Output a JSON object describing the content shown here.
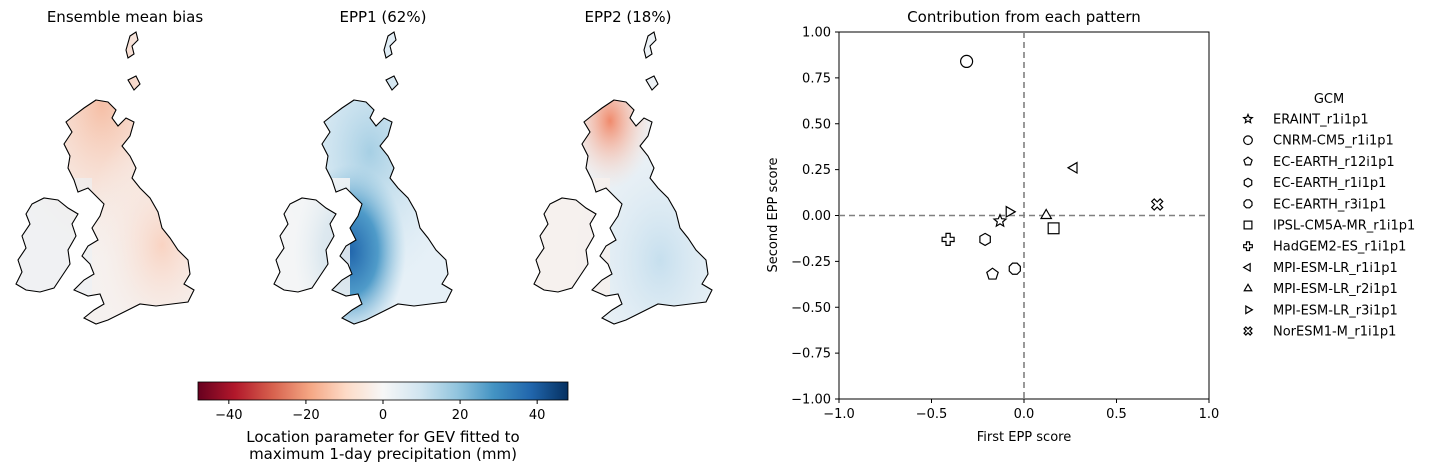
{
  "maps": [
    {
      "title": "Ensemble mean bias",
      "scheme": "bias"
    },
    {
      "title": "EPP1 (62%)",
      "scheme": "epp1"
    },
    {
      "title": "EPP2 (18%)",
      "scheme": "epp2"
    }
  ],
  "colorbar": {
    "colormap": "RdBu",
    "range": [
      -48,
      48
    ],
    "ticks": [
      -40,
      -20,
      0,
      20,
      40
    ],
    "tick_labels": [
      "−40",
      "−20",
      "0",
      "20",
      "40"
    ],
    "label_line1": "Location parameter for GEV fitted to",
    "label_line2": "maximum 1-day precipitation (mm)"
  },
  "chart_data": {
    "type": "scatter",
    "title": "Contribution from each pattern",
    "xlabel": "First EPP score",
    "ylabel": "Second EPP score",
    "xlim": [
      -1.0,
      1.0
    ],
    "ylim": [
      -1.0,
      1.0
    ],
    "xticks": [
      -1.0,
      -0.5,
      0.0,
      0.5,
      1.0
    ],
    "xtick_labels": [
      "−1.0",
      "−0.5",
      "0.0",
      "0.5",
      "1.0"
    ],
    "yticks": [
      1.0,
      0.75,
      0.5,
      0.25,
      0.0,
      -0.25,
      -0.5,
      -0.75,
      -1.0
    ],
    "ytick_labels": [
      "1.00",
      "0.75",
      "0.50",
      "0.25",
      "0.00",
      "−0.25",
      "−0.50",
      "−0.75",
      "−1.00"
    ],
    "reference_lines": {
      "x": 0,
      "y": 0,
      "style": "dashed",
      "color": "#808080"
    },
    "legend_title": "GCM",
    "legend_position": "right, outside",
    "series": [
      {
        "name": "ERAINT_r1i1p1",
        "marker": "star",
        "x": -0.13,
        "y": -0.03
      },
      {
        "name": "CNRM-CM5_r1i1p1",
        "marker": "circle",
        "x": -0.31,
        "y": 0.84
      },
      {
        "name": "EC-EARTH_r12i1p1",
        "marker": "pentagon",
        "x": -0.17,
        "y": -0.32
      },
      {
        "name": "EC-EARTH_r1i1p1",
        "marker": "hexagon",
        "x": -0.21,
        "y": -0.13
      },
      {
        "name": "EC-EARTH_r3i1p1",
        "marker": "octagon",
        "x": -0.05,
        "y": -0.29
      },
      {
        "name": "IPSL-CM5A-MR_r1i1p1",
        "marker": "square",
        "x": 0.16,
        "y": -0.07
      },
      {
        "name": "HadGEM2-ES_r1i1p1",
        "marker": "plus",
        "x": -0.41,
        "y": -0.13
      },
      {
        "name": "MPI-ESM-LR_r1i1p1",
        "marker": "triangle-left",
        "x": 0.27,
        "y": 0.26
      },
      {
        "name": "MPI-ESM-LR_r2i1p1",
        "marker": "triangle-up",
        "x": 0.12,
        "y": 0.0
      },
      {
        "name": "MPI-ESM-LR_r3i1p1",
        "marker": "triangle-right",
        "x": -0.08,
        "y": 0.02
      },
      {
        "name": "NorESM1-M_r1i1p1",
        "marker": "x",
        "x": 0.72,
        "y": 0.06
      }
    ]
  }
}
